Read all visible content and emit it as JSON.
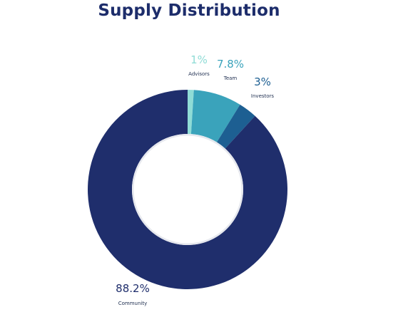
{
  "chart_data": {
    "type": "pie",
    "title": "Supply Distribution",
    "donut": true,
    "slices": [
      {
        "label": "Advisors",
        "value": 1,
        "value_label": "1%",
        "color": "#8fdcd6"
      },
      {
        "label": "Team",
        "value": 7.8,
        "value_label": "7.8%",
        "color": "#3aa3bb"
      },
      {
        "label": "Investors",
        "value": 3,
        "value_label": "3%",
        "color": "#1d5f92"
      },
      {
        "label": "Community",
        "value": 88.2,
        "value_label": "88.2%",
        "color": "#1f2e6c"
      }
    ],
    "legend": "none",
    "start_angle_deg": 0
  }
}
